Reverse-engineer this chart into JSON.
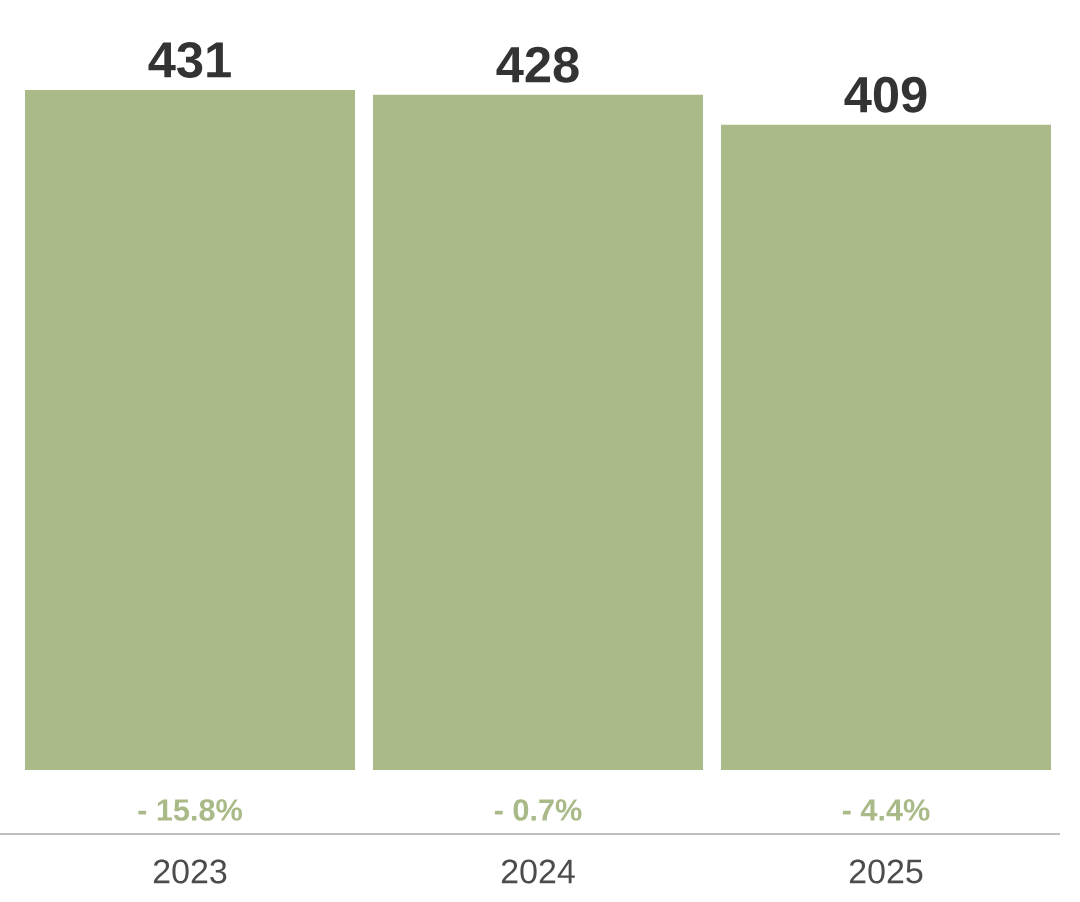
{
  "chart_data": {
    "type": "bar",
    "categories": [
      "2023",
      "2024",
      "2025"
    ],
    "values": [
      431,
      428,
      409
    ],
    "color": "#a9ba88",
    "data_labels": true,
    "annotations": [
      "- 15.8%",
      "- 0.7%",
      "- 4.4%"
    ]
  }
}
